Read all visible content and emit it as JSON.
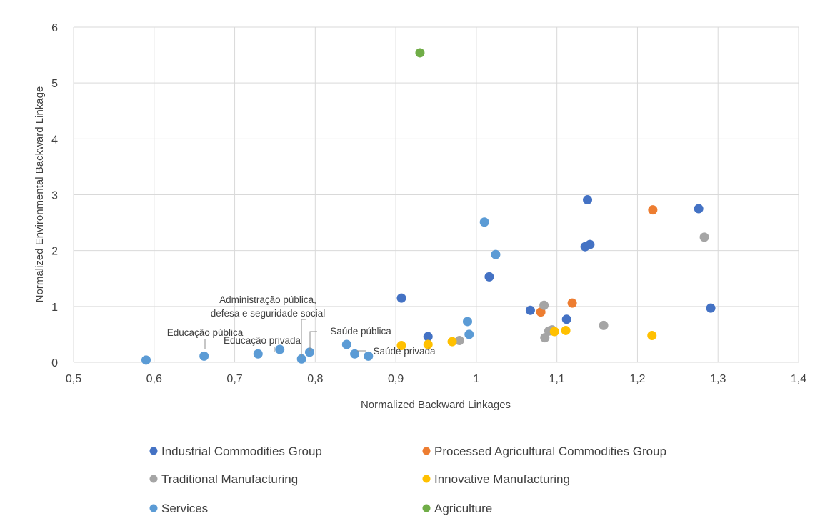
{
  "chart_data": {
    "type": "scatter",
    "xlabel": "Normalized Backward Linkages",
    "ylabel": "Normalized Environmental Backward Linkage",
    "xlim": [
      0.5,
      1.4
    ],
    "ylim": [
      0,
      6
    ],
    "x_ticks": [
      "0,5",
      "0,6",
      "0,7",
      "0,8",
      "0,9",
      "1",
      "1,1",
      "1,2",
      "1,3",
      "1,4"
    ],
    "y_ticks": [
      "0",
      "1",
      "2",
      "3",
      "4",
      "5",
      "6"
    ],
    "grid": true,
    "legend_position": "bottom",
    "series": [
      {
        "name": "Industrial Commodities Group",
        "color": "#4472C4",
        "points": [
          [
            0.907,
            1.15
          ],
          [
            0.94,
            0.46
          ],
          [
            1.016,
            1.53
          ],
          [
            1.067,
            0.93
          ],
          [
            1.112,
            0.77
          ],
          [
            1.135,
            2.07
          ],
          [
            1.138,
            2.91
          ],
          [
            1.141,
            2.11
          ],
          [
            1.276,
            2.75
          ],
          [
            1.291,
            0.97
          ]
        ]
      },
      {
        "name": "Processed Agricultural Commodities Group",
        "color": "#ED7D31",
        "points": [
          [
            1.08,
            0.9
          ],
          [
            1.119,
            1.06
          ],
          [
            1.219,
            2.73
          ]
        ]
      },
      {
        "name": "Traditional Manufacturing",
        "color": "#A5A5A5",
        "points": [
          [
            0.979,
            0.39
          ],
          [
            1.084,
            1.02
          ],
          [
            1.085,
            0.44
          ],
          [
            1.09,
            0.56
          ],
          [
            1.094,
            0.58
          ],
          [
            1.158,
            0.66
          ],
          [
            1.283,
            2.24
          ]
        ]
      },
      {
        "name": "Innovative Manufacturing",
        "color": "#FFC000",
        "points": [
          [
            0.907,
            0.3
          ],
          [
            0.94,
            0.32
          ],
          [
            0.97,
            0.37
          ],
          [
            1.097,
            0.55
          ],
          [
            1.111,
            0.57
          ],
          [
            1.218,
            0.48
          ]
        ]
      },
      {
        "name": "Services",
        "color": "#5B9BD5",
        "points": [
          [
            0.59,
            0.04
          ],
          [
            0.662,
            0.11
          ],
          [
            0.729,
            0.15
          ],
          [
            0.756,
            0.23
          ],
          [
            0.783,
            0.06
          ],
          [
            0.793,
            0.18
          ],
          [
            0.839,
            0.32
          ],
          [
            0.849,
            0.15
          ],
          [
            0.866,
            0.11
          ],
          [
            0.989,
            0.73
          ],
          [
            0.991,
            0.5
          ],
          [
            1.01,
            2.51
          ],
          [
            1.024,
            1.93
          ]
        ]
      },
      {
        "name": "Agriculture",
        "color": "#70AD47",
        "points": [
          [
            0.93,
            5.54
          ]
        ]
      }
    ],
    "annotations": [
      {
        "lines": [
          "Educação pública"
        ],
        "point": [
          0.662,
          0.11
        ]
      },
      {
        "lines": [
          "Educação privada"
        ],
        "point": [
          0.756,
          0.23
        ]
      },
      {
        "lines": [
          "Administração pública,",
          "defesa e seguridade social"
        ],
        "point": [
          0.783,
          0.06
        ]
      },
      {
        "lines": [
          "Saúde pública"
        ],
        "point": [
          0.793,
          0.18
        ]
      },
      {
        "lines": [
          "Saúde privada"
        ],
        "point": [
          0.849,
          0.15
        ]
      }
    ]
  }
}
